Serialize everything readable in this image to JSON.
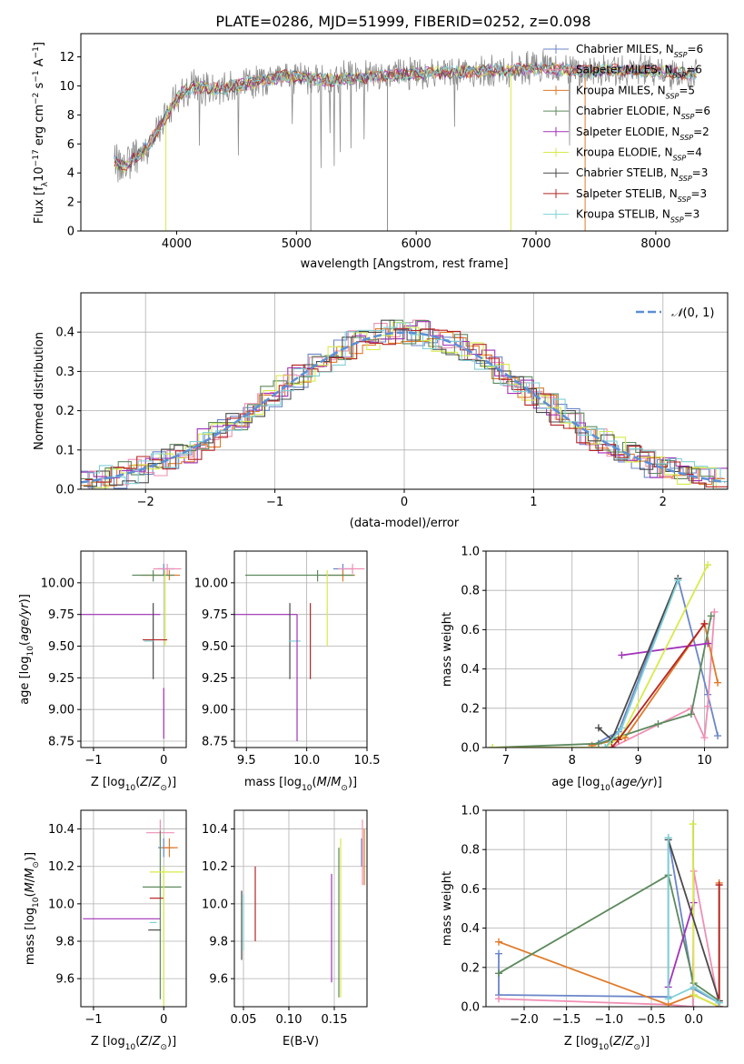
{
  "figure": {
    "title": "PLATE=0286, MJD=51999, FIBERID=0252, z=0.098"
  },
  "colors": {
    "Chabrier MILES": "#6b86c9",
    "Salpeter MILES": "#ef8fb4",
    "Kroupa MILES": "#e07a28",
    "Chabrier ELODIE": "#5d8a5e",
    "Salpeter ELODIE": "#a232b8",
    "Kroupa ELODIE": "#d8ea4a",
    "Chabrier STELIB": "#4a4a4a",
    "Salpeter STELIB": "#b52424",
    "Kroupa STELIB": "#7fd0d6",
    "grid": "#b0b0b0",
    "normal": "#5b8fd6"
  },
  "chart_data": [
    {
      "id": "spectrum",
      "type": "line",
      "title": "PLATE=0286, MJD=51999, FIBERID=0252, z=0.098",
      "xlabel": "wavelength [Angstrom, rest frame]",
      "ylabel": "Flux [f_λ 10^-17 erg cm^-2 s^-1 A^-1]",
      "xlim": [
        3200,
        8600
      ],
      "ylim": [
        0,
        13.6
      ],
      "xticks": [
        4000,
        5000,
        6000,
        7000,
        8000
      ],
      "yticks": [
        0,
        2,
        4,
        6,
        8,
        10,
        12
      ],
      "grid": false,
      "legend_position": "top-right",
      "continuum": {
        "x": [
          3470,
          3550,
          3650,
          3750,
          3850,
          3950,
          4050,
          4150,
          4300,
          4500,
          4700,
          4900,
          5100,
          5300,
          5600,
          5900,
          6200,
          6500,
          6800,
          7100,
          7400,
          7700,
          8000,
          8300,
          8350
        ],
        "y": [
          4.9,
          4.4,
          5.0,
          5.8,
          7.0,
          8.4,
          9.6,
          9.9,
          9.8,
          10.0,
          10.3,
          10.7,
          10.5,
          10.4,
          10.6,
          10.8,
          10.9,
          11.0,
          11.1,
          11.2,
          11.0,
          11.1,
          11.0,
          10.8,
          10.8
        ]
      },
      "series": [
        {
          "name": "Chabrier MILES",
          "nssp": "6"
        },
        {
          "name": "Salpeter MILES",
          "nssp": "6"
        },
        {
          "name": "Kroupa MILES",
          "nssp": "5"
        },
        {
          "name": "Chabrier ELODIE",
          "nssp": "6"
        },
        {
          "name": "Salpeter ELODIE",
          "nssp": "2"
        },
        {
          "name": "Kroupa ELODIE",
          "nssp": "4"
        },
        {
          "name": "Chabrier STELIB",
          "nssp": "3"
        },
        {
          "name": "Salpeter STELIB",
          "nssp": "3"
        },
        {
          "name": "Kroupa STELIB",
          "nssp": "3"
        }
      ]
    },
    {
      "id": "residuals",
      "type": "line",
      "xlabel": "(data-model)/error",
      "ylabel": "Normed distribution",
      "xlim": [
        -2.5,
        2.5
      ],
      "ylim": [
        0,
        0.5
      ],
      "xticks": [
        -2,
        -1,
        0,
        1,
        2
      ],
      "yticks": [
        0.0,
        0.1,
        0.2,
        0.3,
        0.4
      ],
      "grid": true,
      "legend_position": "top-right",
      "legend": "N(0,1)",
      "normal_curve": {
        "mean": 0,
        "sigma": 1
      }
    },
    {
      "id": "age_vs_Z",
      "type": "errorbar",
      "xlabel": "Z [log10(Z/Z⊙)]",
      "ylabel": "age [log10(age/yr)]",
      "xlim": [
        -1.18,
        0.32
      ],
      "ylim": [
        8.7,
        10.25
      ],
      "xticks": [
        -1,
        0
      ],
      "yticks": [
        8.75,
        9.0,
        9.25,
        9.5,
        9.75,
        10.0
      ],
      "grid": true,
      "points": [
        {
          "series": "Chabrier MILES",
          "x": 0.0,
          "xerr": [
            0.08,
            0.15
          ],
          "y": 10.11,
          "yerr": [
            0.05,
            0.04
          ]
        },
        {
          "series": "Salpeter MILES",
          "x": 0.05,
          "xerr": [
            0.2,
            0.2
          ],
          "y": 10.11,
          "yerr": [
            0.05,
            0.04
          ]
        },
        {
          "series": "Kroupa MILES",
          "x": 0.08,
          "xerr": [
            0.4,
            0.15
          ],
          "y": 10.06,
          "yerr": [
            0.04,
            0.04
          ]
        },
        {
          "series": "Chabrier ELODIE",
          "x": -0.15,
          "xerr": [
            0.3,
            0.3
          ],
          "y": 10.06,
          "yerr": [
            0.05,
            0.04
          ]
        },
        {
          "series": "Salpeter ELODIE",
          "x": -0.6,
          "xerr": [
            0.6,
            0.55
          ],
          "y": 9.75,
          "yerr": [
            0.0,
            0.0
          ]
        },
        {
          "series": "Kroupa ELODIE",
          "x": 0.02,
          "xerr": [
            0.0,
            0.0
          ],
          "y": 9.8,
          "yerr": [
            0.3,
            0.3
          ]
        },
        {
          "series": "Chabrier STELIB",
          "x": -0.15,
          "xerr": [
            0.0,
            0.0
          ],
          "y": 9.54,
          "yerr": [
            0.3,
            0.3
          ]
        },
        {
          "series": "Salpeter STELIB",
          "x": -0.1,
          "xerr": [
            0.2,
            0.15
          ],
          "y": 9.55,
          "yerr": [
            0.0,
            0.0
          ]
        },
        {
          "series": "Kroupa STELIB",
          "x": -0.2,
          "xerr": [
            0.08,
            0.05
          ],
          "y": 9.54,
          "yerr": [
            0.0,
            0.0
          ]
        },
        {
          "series": "Salpeter ELODIE",
          "x": 0.0,
          "xerr": [
            0.0,
            0.0
          ],
          "y": 8.97,
          "yerr": [
            0.2,
            0.2
          ]
        }
      ]
    },
    {
      "id": "age_vs_mass",
      "type": "errorbar",
      "xlabel": "mass [log10(M/M⊙)]",
      "ylabel": "",
      "xlim": [
        9.4,
        10.5
      ],
      "ylim": [
        8.7,
        10.25
      ],
      "xticks": [
        9.5,
        10.0,
        10.5
      ],
      "yticks": [
        8.75,
        9.0,
        9.25,
        9.5,
        9.75,
        10.0
      ],
      "grid": true,
      "points": [
        {
          "series": "Chabrier MILES",
          "x": 10.3,
          "xerr": [
            0.08,
            0.08
          ],
          "y": 10.11,
          "yerr": [
            0.05,
            0.04
          ]
        },
        {
          "series": "Salpeter MILES",
          "x": 10.38,
          "xerr": [
            0.12,
            0.1
          ],
          "y": 10.11,
          "yerr": [
            0.04,
            0.04
          ]
        },
        {
          "series": "Kroupa MILES",
          "x": 10.3,
          "xerr": [
            0.15,
            0.1
          ],
          "y": 10.06,
          "yerr": [
            0.05,
            0.04
          ]
        },
        {
          "series": "Chabrier ELODIE",
          "x": 10.09,
          "xerr": [
            0.6,
            0.3
          ],
          "y": 10.06,
          "yerr": [
            0.05,
            0.04
          ]
        },
        {
          "series": "Salpeter ELODIE",
          "x": 9.92,
          "xerr": [
            0.55,
            0.0
          ],
          "y": 9.75,
          "yerr": [
            0.0,
            0.0
          ]
        },
        {
          "series": "Kroupa ELODIE",
          "x": 10.17,
          "xerr": [
            0.0,
            0.0
          ],
          "y": 9.8,
          "yerr": [
            0.3,
            0.3
          ]
        },
        {
          "series": "Chabrier STELIB",
          "x": 9.86,
          "xerr": [
            0.0,
            0.0
          ],
          "y": 9.54,
          "yerr": [
            0.3,
            0.3
          ]
        },
        {
          "series": "Salpeter STELIB",
          "x": 10.03,
          "xerr": [
            0.0,
            0.0
          ],
          "y": 9.54,
          "yerr": [
            0.3,
            0.3
          ]
        },
        {
          "series": "Kroupa STELIB",
          "x": 9.9,
          "xerr": [
            0.05,
            0.05
          ],
          "y": 9.54,
          "yerr": [
            0.0,
            0.0
          ]
        },
        {
          "series": "Salpeter ELODIE",
          "x": 9.92,
          "xerr": [
            0.0,
            0.0
          ],
          "y": 9.3,
          "yerr": [
            0.55,
            0.45
          ]
        }
      ]
    },
    {
      "id": "weight_vs_age",
      "type": "line",
      "xlabel": "age [log10(age/yr)]",
      "ylabel": "mass weight",
      "xlim": [
        6.7,
        10.35
      ],
      "ylim": [
        0.0,
        1.0
      ],
      "xticks": [
        7,
        8,
        9,
        10
      ],
      "yticks": [
        0.0,
        0.2,
        0.4,
        0.6,
        0.8,
        1.0
      ],
      "grid": true,
      "series": [
        {
          "name": "Chabrier MILES",
          "x": [
            8.3,
            8.7,
            9.6,
            10.05,
            10.2
          ],
          "y": [
            0.01,
            0.08,
            0.86,
            0.27,
            0.06
          ]
        },
        {
          "name": "Salpeter MILES",
          "x": [
            8.6,
            9.8,
            10.0,
            10.05,
            10.15
          ],
          "y": [
            0.0,
            0.2,
            0.05,
            0.21,
            0.69
          ]
        },
        {
          "name": "Kroupa MILES",
          "x": [
            8.3,
            8.8,
            10.0,
            10.2
          ],
          "y": [
            0.01,
            0.05,
            0.63,
            0.33
          ]
        },
        {
          "name": "Chabrier ELODIE",
          "x": [
            6.8,
            8.4,
            9.3,
            9.8,
            10.1
          ],
          "y": [
            0.0,
            0.02,
            0.12,
            0.17,
            0.67
          ]
        },
        {
          "name": "Salpeter ELODIE",
          "x": [
            8.75,
            10.05
          ],
          "y": [
            0.47,
            0.53
          ]
        },
        {
          "name": "Kroupa ELODIE",
          "x": [
            6.8,
            8.5,
            8.75,
            10.05
          ],
          "y": [
            0.0,
            0.0,
            0.06,
            0.93
          ]
        },
        {
          "name": "Chabrier STELIB",
          "x": [
            8.4,
            8.6,
            9.6
          ],
          "y": [
            0.1,
            0.04,
            0.86
          ]
        },
        {
          "name": "Salpeter STELIB",
          "x": [
            8.6,
            8.7,
            10.0
          ],
          "y": [
            0.0,
            0.04,
            0.63
          ]
        },
        {
          "name": "Kroupa STELIB",
          "x": [
            8.5,
            8.75,
            9.6
          ],
          "y": [
            0.0,
            0.1,
            0.85
          ]
        }
      ]
    },
    {
      "id": "mass_vs_Z",
      "type": "errorbar",
      "xlabel": "Z [log10(Z/Z⊙)]",
      "ylabel": "mass [log10(M/M⊙)]",
      "xlim": [
        -1.18,
        0.32
      ],
      "ylim": [
        9.45,
        10.5
      ],
      "xticks": [
        -1,
        0
      ],
      "yticks": [
        9.6,
        9.8,
        10.0,
        10.2,
        10.4
      ],
      "grid": true,
      "points": [
        {
          "series": "Chabrier MILES",
          "x": 0.0,
          "xerr": [
            0.08,
            0.15
          ],
          "y": 10.3,
          "yerr": [
            0.05,
            0.05
          ]
        },
        {
          "series": "Salpeter MILES",
          "x": -0.05,
          "xerr": [
            0.2,
            0.2
          ],
          "y": 10.38,
          "yerr": [
            0.05,
            0.07
          ]
        },
        {
          "series": "Kroupa MILES",
          "x": 0.08,
          "xerr": [
            0.1,
            0.12
          ],
          "y": 10.3,
          "yerr": [
            0.05,
            0.05
          ]
        },
        {
          "series": "Chabrier ELODIE",
          "x": -0.05,
          "xerr": [
            0.25,
            0.3
          ],
          "y": 10.09,
          "yerr": [
            0.6,
            0.3
          ]
        },
        {
          "series": "Salpeter ELODIE",
          "x": -0.6,
          "xerr": [
            0.55,
            0.55
          ],
          "y": 9.92,
          "yerr": [
            0.0,
            0.0
          ]
        },
        {
          "series": "Kroupa ELODIE",
          "x": 0.0,
          "xerr": [
            0.2,
            0.28
          ],
          "y": 10.17,
          "yerr": [
            0.0,
            0.0
          ]
        },
        {
          "series": "Chabrier STELIB",
          "x": -0.12,
          "xerr": [
            0.1,
            0.08
          ],
          "y": 9.86,
          "yerr": [
            0.0,
            0.0
          ]
        },
        {
          "series": "Salpeter STELIB",
          "x": -0.1,
          "xerr": [
            0.1,
            0.1
          ],
          "y": 10.03,
          "yerr": [
            0.0,
            0.0
          ]
        },
        {
          "series": "Kroupa STELIB",
          "x": -0.15,
          "xerr": [
            0.05,
            0.05
          ],
          "y": 9.9,
          "yerr": [
            0.0,
            0.0
          ]
        },
        {
          "series": "Kroupa ELODIE",
          "x": 0.0,
          "xerr": [
            0.0,
            0.0
          ],
          "y": 9.8,
          "yerr": [
            0.35,
            0.4
          ]
        }
      ]
    },
    {
      "id": "mass_vs_ebv",
      "type": "errorbar",
      "xlabel": "E(B-V)",
      "ylabel": "",
      "xlim": [
        0.04,
        0.186
      ],
      "ylim": [
        9.45,
        10.5
      ],
      "xticks": [
        0.05,
        0.1,
        0.15
      ],
      "yticks": [
        9.6,
        9.8,
        10.0,
        10.2,
        10.4
      ],
      "grid": true,
      "points": [
        {
          "series": "Chabrier MILES",
          "x": 0.18,
          "xerr": [
            0.0,
            0.0
          ],
          "y": 10.3,
          "yerr": [
            0.1,
            0.05
          ]
        },
        {
          "series": "Salpeter MILES",
          "x": 0.181,
          "xerr": [
            0.0,
            0.0
          ],
          "y": 10.3,
          "yerr": [
            0.2,
            0.15
          ]
        },
        {
          "series": "Kroupa MILES",
          "x": 0.183,
          "xerr": [
            0.0,
            0.0
          ],
          "y": 10.2,
          "yerr": [
            0.1,
            0.2
          ]
        },
        {
          "series": "Chabrier ELODIE",
          "x": 0.155,
          "xerr": [
            0.0,
            0.0
          ],
          "y": 9.9,
          "yerr": [
            0.4,
            0.4
          ]
        },
        {
          "series": "Salpeter ELODIE",
          "x": 0.147,
          "xerr": [
            0.0,
            0.0
          ],
          "y": 9.88,
          "yerr": [
            0.3,
            0.28
          ]
        },
        {
          "series": "Kroupa ELODIE",
          "x": 0.157,
          "xerr": [
            0.0,
            0.0
          ],
          "y": 9.9,
          "yerr": [
            0.4,
            0.45
          ]
        },
        {
          "series": "Chabrier STELIB",
          "x": 0.048,
          "xerr": [
            0.0,
            0.0
          ],
          "y": 9.9,
          "yerr": [
            0.2,
            0.17
          ]
        },
        {
          "series": "Salpeter STELIB",
          "x": 0.063,
          "xerr": [
            0.0,
            0.0
          ],
          "y": 10.0,
          "yerr": [
            0.2,
            0.2
          ]
        },
        {
          "series": "Kroupa STELIB",
          "x": 0.05,
          "xerr": [
            0.0,
            0.0
          ],
          "y": 9.9,
          "yerr": [
            0.15,
            0.15
          ]
        }
      ]
    },
    {
      "id": "weight_vs_Z",
      "type": "line",
      "xlabel": "Z [log10(Z/Z⊙)]",
      "ylabel": "mass weight",
      "xlim": [
        -2.45,
        0.4
      ],
      "ylim": [
        0.0,
        1.0
      ],
      "xticks": [
        -2.0,
        -1.5,
        -1.0,
        -0.5,
        0.0
      ],
      "yticks": [
        0.0,
        0.2,
        0.4,
        0.6,
        0.8,
        1.0
      ],
      "grid": true,
      "series": [
        {
          "name": "Chabrier MILES",
          "x": [
            -2.3,
            -2.3,
            -0.3,
            -0.3,
            0.0,
            0.3
          ],
          "y": [
            0.27,
            0.06,
            0.05,
            0.86,
            0.09,
            0.02
          ]
        },
        {
          "name": "Salpeter MILES",
          "x": [
            -2.3,
            -0.3,
            -0.01,
            0.0,
            0.3,
            0.3
          ],
          "y": [
            0.04,
            0.01,
            0.0,
            0.69,
            0.0,
            0.62
          ]
        },
        {
          "name": "Kroupa MILES",
          "x": [
            -2.3,
            -0.3,
            0.0,
            0.3,
            0.3
          ],
          "y": [
            0.33,
            0.01,
            0.06,
            0.0,
            0.63
          ]
        },
        {
          "name": "Chabrier ELODIE",
          "x": [
            -2.3,
            -0.3,
            0.0,
            0.3
          ],
          "y": [
            0.17,
            0.67,
            0.12,
            0.03
          ]
        },
        {
          "name": "Salpeter ELODIE",
          "x": [
            -0.3,
            0.0
          ],
          "y": [
            0.1,
            0.53
          ]
        },
        {
          "name": "Kroupa ELODIE",
          "x": [
            -0.01,
            0.0,
            0.3
          ],
          "y": [
            0.93,
            0.06,
            0.0
          ]
        },
        {
          "name": "Chabrier STELIB",
          "x": [
            -0.3,
            0.3
          ],
          "y": [
            0.85,
            0.03
          ]
        },
        {
          "name": "Salpeter STELIB",
          "x": [
            0.3,
            0.3
          ],
          "y": [
            0.0,
            0.62
          ]
        },
        {
          "name": "Kroupa STELIB",
          "x": [
            -0.3,
            -0.3,
            0.0,
            0.3
          ],
          "y": [
            0.86,
            0.04,
            0.1,
            0.02
          ]
        }
      ]
    }
  ]
}
